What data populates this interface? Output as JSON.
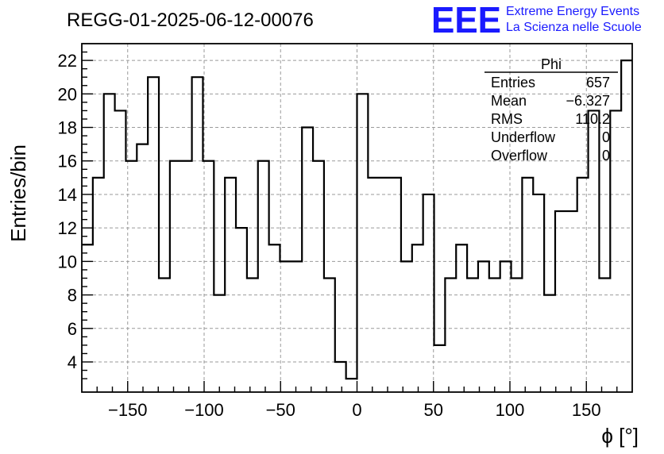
{
  "chart_data": {
    "type": "histogram",
    "title": "REGG-01-2025-06-12-00076",
    "xlabel": "ϕ [°]",
    "ylabel": "Entries/bin",
    "xlim": [
      -180,
      180
    ],
    "ylim": [
      2.2,
      23.0
    ],
    "xticks": [
      -150,
      -100,
      -50,
      0,
      50,
      100,
      150
    ],
    "xtick_labels": [
      "−150",
      "−100",
      "−50",
      "0",
      "50",
      "100",
      "150"
    ],
    "yticks": [
      4,
      6,
      8,
      10,
      12,
      14,
      16,
      18,
      20,
      22
    ],
    "grid": true,
    "bin_edges_start": -180,
    "bin_width": 7.2,
    "values": [
      11,
      15,
      20,
      19,
      16,
      17,
      21,
      9,
      16,
      16,
      21,
      16,
      8,
      15,
      12,
      9,
      16,
      11,
      10,
      10,
      18,
      16,
      9,
      4,
      3,
      20,
      15,
      15,
      15,
      10,
      11,
      14,
      5,
      9,
      11,
      9,
      10,
      9,
      10,
      9,
      15,
      14,
      8,
      13,
      13,
      15,
      19,
      9,
      19,
      22
    ],
    "stats": {
      "name": "Phi",
      "rows": [
        {
          "label": "Entries",
          "value": "657"
        },
        {
          "label": "Mean",
          "value": "−6.327"
        },
        {
          "label": "RMS",
          "value": "110.2"
        },
        {
          "label": "Underflow",
          "value": "0"
        },
        {
          "label": "Overflow",
          "value": "0"
        }
      ]
    },
    "logo": {
      "mark": "EEE",
      "line1": "Extreme Energy Events",
      "line2": "La Scienza nelle Scuole",
      "color": "#1a1aff"
    }
  }
}
